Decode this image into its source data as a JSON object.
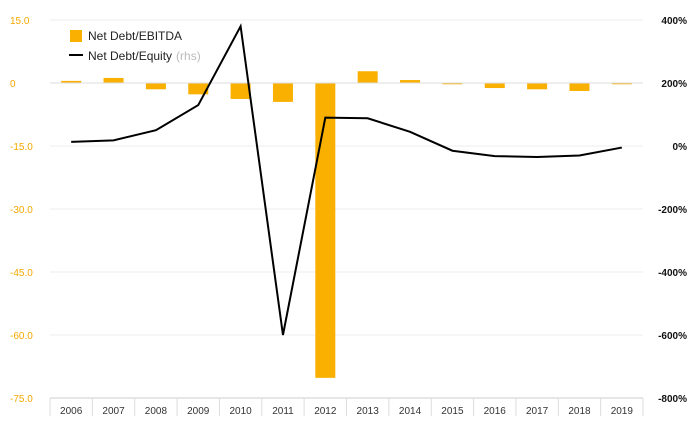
{
  "chart_data": {
    "type": "bar+line",
    "categories": [
      "2006",
      "2007",
      "2008",
      "2009",
      "2010",
      "2011",
      "2012",
      "2013",
      "2014",
      "2015",
      "2016",
      "2017",
      "2018",
      "2019"
    ],
    "series": [
      {
        "name": "Net Debt/EBITDA",
        "type": "bar",
        "axis": "left",
        "color": "#f9b000",
        "values": [
          0.5,
          1.2,
          -1.5,
          -2.7,
          -3.8,
          -4.5,
          -70.2,
          2.8,
          0.7,
          -0.3,
          -1.2,
          -1.5,
          -1.9,
          -0.3
        ]
      },
      {
        "name": "Net Debt/Equity",
        "suffix": "(rhs)",
        "type": "line",
        "axis": "right",
        "color": "#000000",
        "values": [
          13,
          18,
          50,
          130,
          380,
          -600,
          90,
          88,
          45,
          -15,
          -32,
          -35,
          -30,
          -5
        ]
      }
    ],
    "left_axis": {
      "min": -75,
      "max": 15,
      "ticks": [
        15,
        0,
        -15,
        -30,
        -45,
        -60,
        -75
      ],
      "tick_labels": [
        "15.0",
        "0",
        "-15.0",
        "-30.0",
        "-45.0",
        "-60.0",
        "-75.0"
      ],
      "color": "#f5a800"
    },
    "right_axis": {
      "min": -800,
      "max": 400,
      "ticks": [
        400,
        200,
        0,
        -200,
        -400,
        -600,
        -800
      ],
      "tick_labels": [
        "400%",
        "200%",
        "0%",
        "-200%",
        "-400%",
        "-600%",
        "-800%"
      ]
    },
    "grid": true,
    "legend": "top-left"
  }
}
